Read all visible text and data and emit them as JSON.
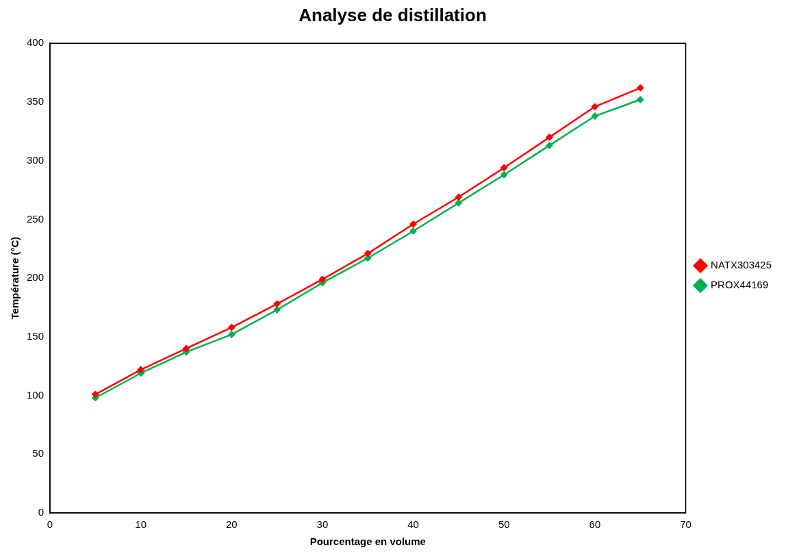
{
  "chart_data": {
    "type": "line",
    "title": "Analyse de distillation",
    "xlabel": "Pourcentage en volume",
    "ylabel": "Température (°C)",
    "x": [
      5,
      10,
      15,
      20,
      25,
      30,
      35,
      40,
      45,
      50,
      55,
      60,
      65
    ],
    "series": [
      {
        "name": "NATX303425",
        "color": "#ff0000",
        "values": [
          101,
          122,
          140,
          158,
          178,
          199,
          221,
          246,
          269,
          294,
          320,
          346,
          362
        ]
      },
      {
        "name": "PROX44169",
        "color": "#00b050",
        "values": [
          98,
          119,
          137,
          152,
          173,
          196,
          217,
          240,
          264,
          288,
          313,
          338,
          352
        ]
      }
    ],
    "xlim": [
      0,
      70
    ],
    "xticks": [
      0,
      10,
      20,
      30,
      40,
      50,
      60,
      70
    ],
    "ylim": [
      0,
      400
    ],
    "yticks": [
      0,
      50,
      100,
      150,
      200,
      250,
      300,
      350,
      400
    ],
    "grid": false,
    "legend": "right",
    "marker": "diamond",
    "line_style": "solid"
  }
}
